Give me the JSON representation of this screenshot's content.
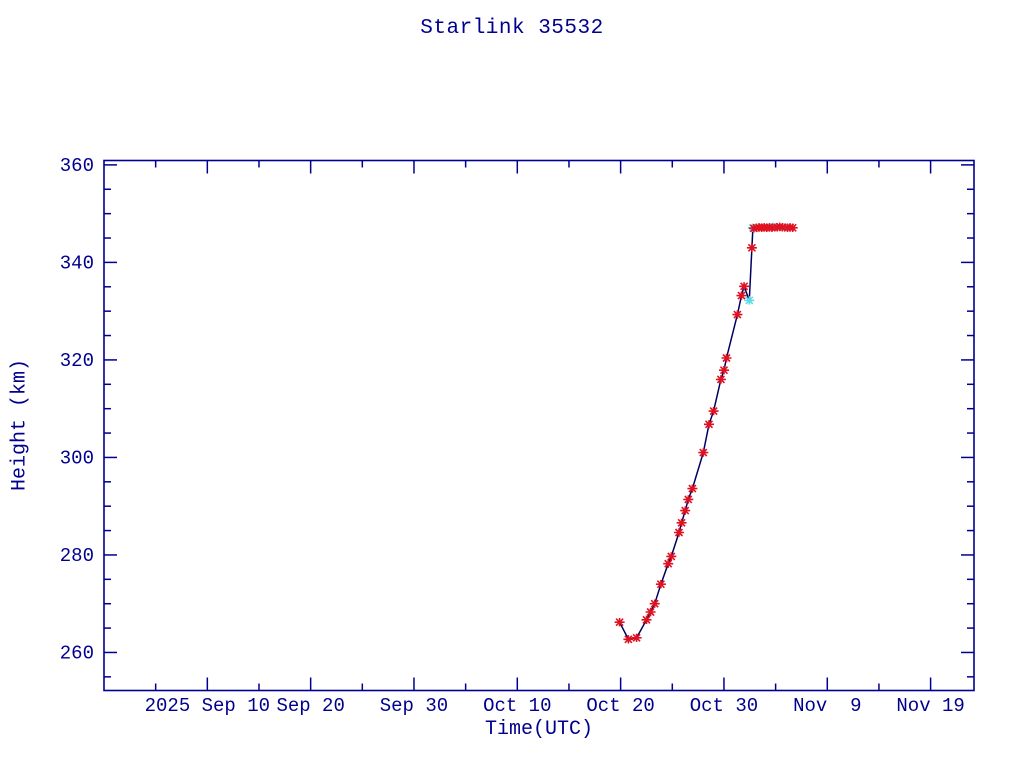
{
  "chart_data": {
    "type": "line",
    "title": "Starlink 35532",
    "xlabel": "Time(UTC)",
    "ylabel": "Height (km)",
    "grid": false,
    "legend": null,
    "x_unit": "days since 2025 Sep 10 00:00 UTC",
    "xlim": [
      -10,
      74.2
    ],
    "ylim": [
      252.2,
      360.9
    ],
    "x_major_ticks": [
      {
        "d": 0,
        "label": "2025 Sep 10"
      },
      {
        "d": 10,
        "label": "Sep 20"
      },
      {
        "d": 20,
        "label": "Sep 30"
      },
      {
        "d": 30,
        "label": "Oct 10"
      },
      {
        "d": 40,
        "label": "Oct 20"
      },
      {
        "d": 50,
        "label": "Oct 30"
      },
      {
        "d": 60,
        "label": "Nov  9"
      },
      {
        "d": 70,
        "label": "Nov 19"
      }
    ],
    "x_minor_ticks_days": [
      -5,
      5,
      15,
      25,
      35,
      45,
      55,
      65
    ],
    "y_major_ticks": [
      260,
      280,
      300,
      320,
      340,
      360
    ],
    "y_minor_step_km": 5,
    "colors": {
      "frame": "#00008f",
      "text": "#00008f",
      "line": "#000060",
      "observed": "#e01222",
      "highlight": "#5adce6"
    },
    "marker_style": "asterisk",
    "line_note": "dark navy line connects all points in time order",
    "series": [
      {
        "name": "observed-height",
        "color_key": "observed",
        "points_format": [
          "days_since_2025_09_10",
          "height_km"
        ],
        "points": [
          [
            39.9,
            266.2
          ],
          [
            40.75,
            262.7
          ],
          [
            41.55,
            263.0
          ],
          [
            42.5,
            266.7
          ],
          [
            42.9,
            268.3
          ],
          [
            43.3,
            270.0
          ],
          [
            43.9,
            274.0
          ],
          [
            44.6,
            278.2
          ],
          [
            44.9,
            279.7
          ],
          [
            45.65,
            284.6
          ],
          [
            45.9,
            286.6
          ],
          [
            46.25,
            289.1
          ],
          [
            46.55,
            291.4
          ],
          [
            46.95,
            293.6
          ],
          [
            48.0,
            301.0
          ],
          [
            48.55,
            306.8
          ],
          [
            49.0,
            309.5
          ],
          [
            49.7,
            316.0
          ],
          [
            50.0,
            317.9
          ],
          [
            50.25,
            320.4
          ],
          [
            51.3,
            329.3
          ],
          [
            51.7,
            333.2
          ],
          [
            51.95,
            335.1
          ],
          [
            52.7,
            343.0
          ],
          [
            52.9,
            347.0
          ],
          [
            53.15,
            347.1
          ],
          [
            53.4,
            347.2
          ],
          [
            53.65,
            347.1
          ],
          [
            53.9,
            347.2
          ],
          [
            54.15,
            347.1
          ],
          [
            54.4,
            347.2
          ],
          [
            54.65,
            347.1
          ],
          [
            55.15,
            347.2
          ],
          [
            55.4,
            347.3
          ],
          [
            55.65,
            347.2
          ],
          [
            56.15,
            347.1
          ],
          [
            56.4,
            347.2
          ],
          [
            56.65,
            347.1
          ]
        ]
      },
      {
        "name": "highlighted-height",
        "color_key": "highlight",
        "points_format": [
          "days_since_2025_09_10",
          "height_km"
        ],
        "points": [
          [
            52.45,
            332.2
          ],
          [
            52.8,
            347.1
          ],
          [
            54.75,
            347.3
          ],
          [
            55.9,
            347.2
          ]
        ]
      }
    ]
  }
}
